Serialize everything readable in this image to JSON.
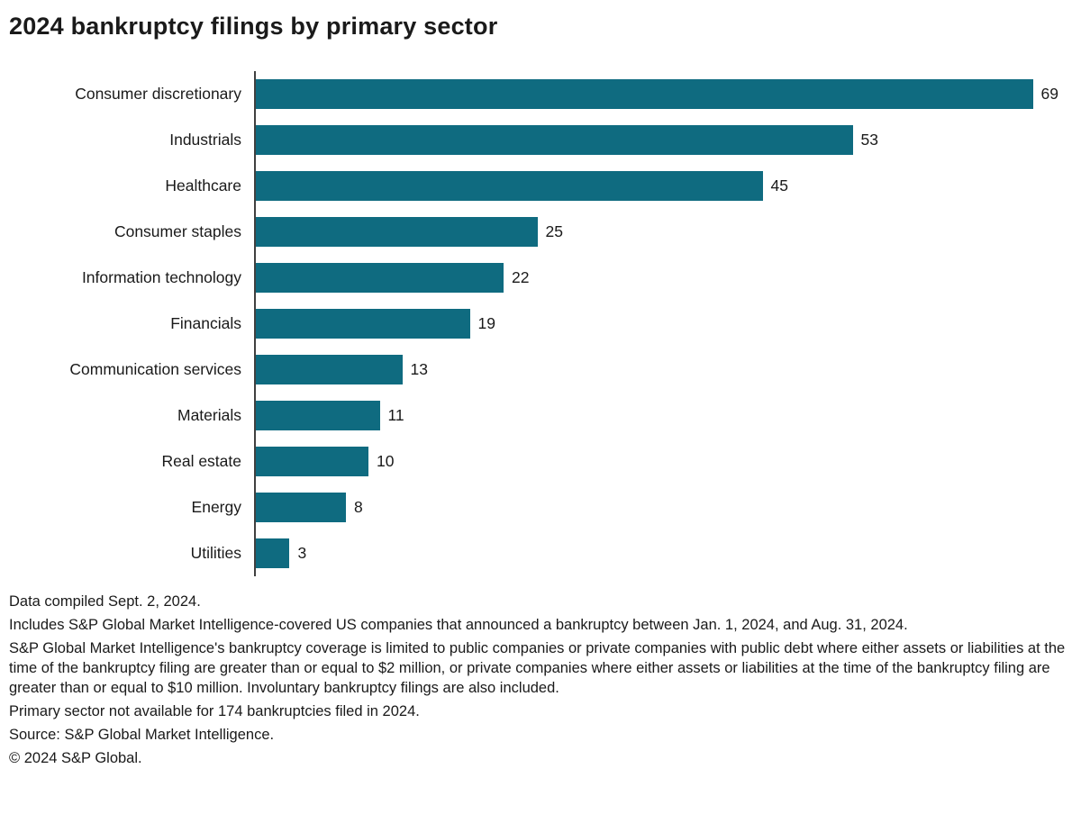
{
  "colors": {
    "bar": "#0f6b80",
    "axis": "#404040",
    "text": "#1a1a1a"
  },
  "chart_data": {
    "type": "bar",
    "orientation": "horizontal",
    "title": "2024 bankruptcy filings by primary sector",
    "xlabel": "",
    "ylabel": "",
    "xlim": [
      0,
      72
    ],
    "grid": false,
    "legend": false,
    "value_labels": true,
    "categories": [
      "Consumer discretionary",
      "Industrials",
      "Healthcare",
      "Consumer staples",
      "Information technology",
      "Financials",
      "Communication services",
      "Materials",
      "Real estate",
      "Energy",
      "Utilities"
    ],
    "values": [
      69,
      53,
      45,
      25,
      22,
      19,
      13,
      11,
      10,
      8,
      3
    ]
  },
  "footnotes": [
    "Data compiled Sept. 2, 2024.",
    "Includes S&P Global Market Intelligence-covered US companies that announced a bankruptcy between Jan. 1, 2024, and Aug. 31, 2024.",
    "S&P Global Market Intelligence's bankruptcy coverage is limited to public companies or private companies with public debt where either assets or liabilities at the time of the bankruptcy filing are greater than or equal to $2 million, or private companies where either assets or liabilities at the time of the bankruptcy filing are greater than or equal to $10 million. Involuntary bankruptcy filings are also included.",
    "Primary sector not available for 174 bankruptcies filed in 2024.",
    "Source: S&P Global Market Intelligence.",
    "© 2024 S&P Global."
  ]
}
